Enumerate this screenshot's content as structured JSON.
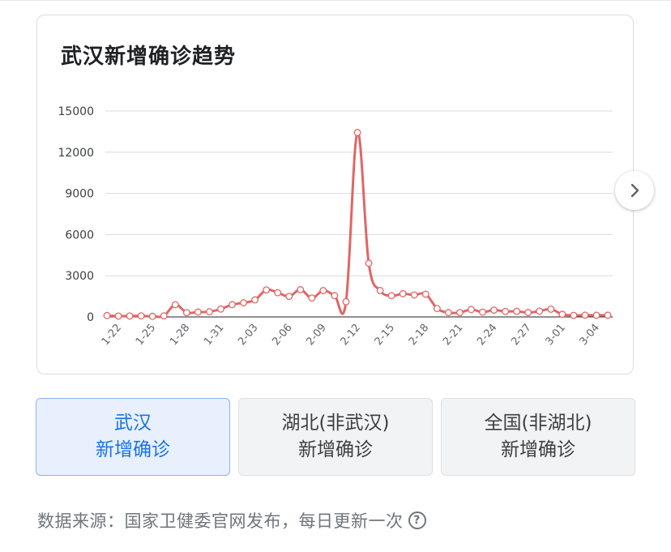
{
  "card": {
    "title": "武汉新增确诊趋势"
  },
  "chart_data": {
    "type": "line",
    "title": "武汉新增确诊趋势",
    "ylim": [
      0,
      15000
    ],
    "yticks": [
      "0",
      "3000",
      "6000",
      "9000",
      "12000",
      "15000"
    ],
    "x_tick_labels": [
      "1-22",
      "1-25",
      "1-28",
      "1-31",
      "2-03",
      "2-06",
      "2-09",
      "2-12",
      "2-15",
      "2-18",
      "2-21",
      "2-24",
      "2-27",
      "3-01",
      "3-04"
    ],
    "x": [
      "1-21",
      "1-22",
      "1-23",
      "1-24",
      "1-25",
      "1-26",
      "1-27",
      "1-28",
      "1-29",
      "1-30",
      "1-31",
      "2-01",
      "2-02",
      "2-03",
      "2-04",
      "2-05",
      "2-06",
      "2-07",
      "2-08",
      "2-09",
      "2-10",
      "2-11",
      "2-12",
      "2-13",
      "2-14",
      "2-15",
      "2-16",
      "2-17",
      "2-18",
      "2-19",
      "2-20",
      "2-21",
      "2-22",
      "2-23",
      "2-24",
      "2-25",
      "2-26",
      "2-27",
      "2-28",
      "2-29",
      "3-01",
      "3-02",
      "3-03",
      "3-04",
      "3-05"
    ],
    "series": [
      {
        "color": "#e06666",
        "values": [
          105,
          62,
          70,
          77,
          46,
          80,
          892,
          315,
          356,
          378,
          576,
          894,
          1033,
          1242,
          1967,
          1766,
          1501,
          1985,
          1379,
          1920,
          1552,
          1104,
          13436,
          3910,
          1923,
          1548,
          1690,
          1600,
          1660,
          615,
          319,
          314,
          541,
          348,
          499,
          401,
          409,
          318,
          423,
          565,
          193,
          114,
          131,
          126,
          126
        ]
      }
    ],
    "grid": true,
    "legend": "none"
  },
  "nav": {
    "next_icon": "chevron-right-icon"
  },
  "tabs": [
    {
      "line1": "武汉",
      "line2": "新增确诊",
      "active": true
    },
    {
      "line1": "湖北(非武汉)",
      "line2": "新增确诊",
      "active": false
    },
    {
      "line1": "全国(非湖北)",
      "line2": "新增确诊",
      "active": false
    }
  ],
  "footer": {
    "text": "数据来源：国家卫健委官网发布，每日更新一次",
    "help_icon": "?"
  },
  "colors": {
    "accent": "#1a73e8",
    "series": "#e06666",
    "active_tab_bg": "#e8f0fe"
  }
}
